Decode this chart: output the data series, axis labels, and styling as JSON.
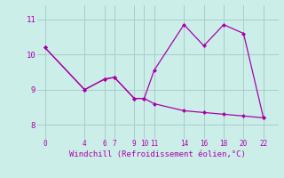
{
  "line1_x": [
    0,
    4,
    6,
    7,
    9,
    10,
    11,
    14,
    16,
    18,
    20,
    22
  ],
  "line1_y": [
    10.2,
    9.0,
    9.3,
    9.35,
    8.75,
    8.75,
    9.55,
    10.85,
    10.25,
    10.85,
    10.6,
    8.2
  ],
  "line2_x": [
    0,
    4,
    6,
    7,
    9,
    10,
    11,
    14,
    16,
    18,
    20,
    22
  ],
  "line2_y": [
    10.2,
    9.0,
    9.3,
    9.35,
    8.75,
    8.75,
    8.6,
    8.4,
    8.35,
    8.3,
    8.25,
    8.2
  ],
  "line_color": "#aa00aa",
  "bg_color": "#cceee8",
  "grid_color": "#aacccc",
  "xlabel": "Windchill (Refroidissement éolien,°C)",
  "xticks": [
    0,
    4,
    6,
    7,
    9,
    10,
    11,
    14,
    16,
    18,
    20,
    22
  ],
  "yticks": [
    8,
    9,
    10,
    11
  ],
  "ylim": [
    7.6,
    11.4
  ],
  "xlim": [
    -0.8,
    23.5
  ]
}
